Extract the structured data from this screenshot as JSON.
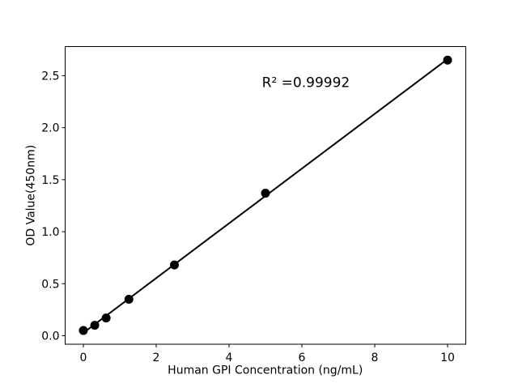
{
  "chart_data": {
    "type": "scatter",
    "title": "",
    "xlabel": "Human GPI Concentration (ng/mL)",
    "ylabel": "OD Value(450nm)",
    "x": [
      0,
      0.3125,
      0.625,
      1.25,
      2.5,
      5,
      10
    ],
    "y": [
      0.05,
      0.1,
      0.17,
      0.35,
      0.68,
      1.37,
      2.65
    ],
    "xticks": [
      0,
      2,
      4,
      6,
      8,
      10
    ],
    "xtick_labels": [
      "0",
      "2",
      "4",
      "6",
      "8",
      "10"
    ],
    "yticks": [
      0.0,
      0.5,
      1.0,
      1.5,
      2.0,
      2.5
    ],
    "ytick_labels": [
      "0.0",
      "0.5",
      "1.0",
      "1.5",
      "2.0",
      "2.5"
    ],
    "xlim": [
      -0.5,
      10.5
    ],
    "ylim": [
      -0.082,
      2.78
    ],
    "grid": false,
    "legend": null,
    "fit_line": {
      "slope": 0.2633,
      "intercept": 0.027,
      "x_start": 0,
      "x_end": 10
    },
    "annotation": {
      "text": "R² =0.99992",
      "x": 6.11,
      "y": 2.39
    },
    "colors": {
      "marker": "#000000",
      "line": "#000000",
      "axis": "#000000",
      "background": "#ffffff"
    }
  }
}
